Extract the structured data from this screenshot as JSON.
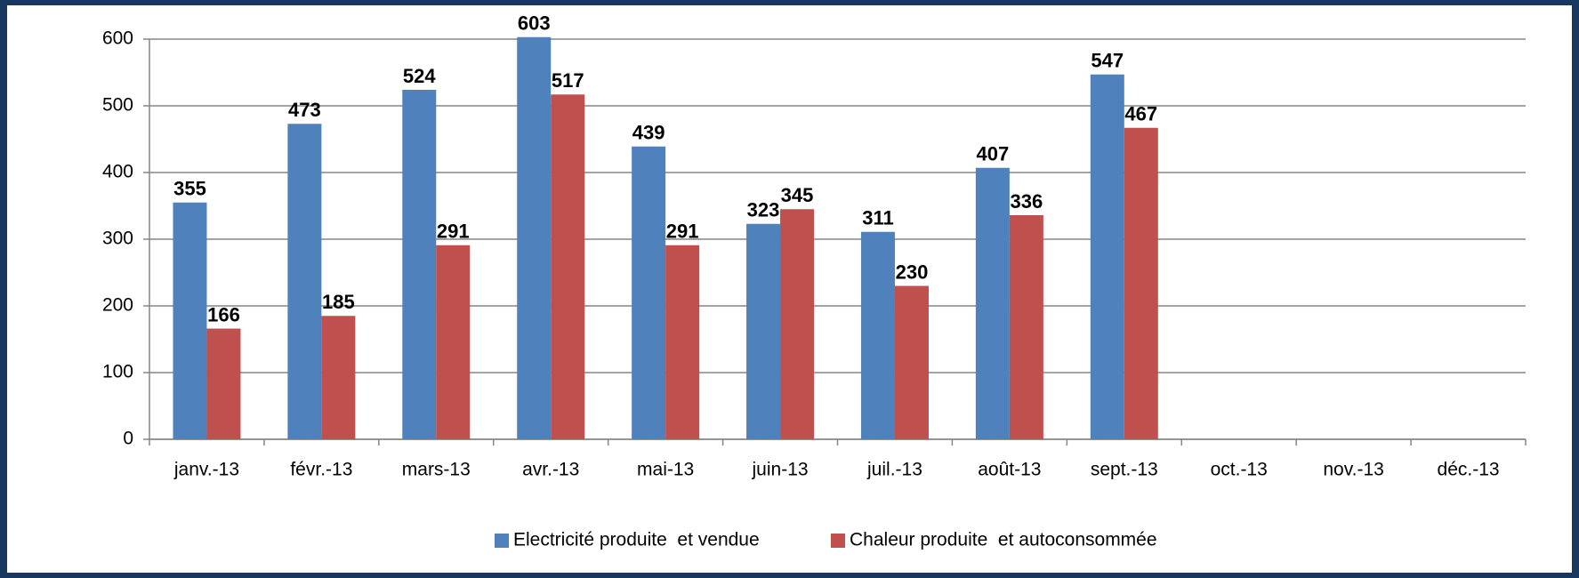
{
  "chart_data": {
    "type": "bar",
    "categories": [
      "janv.-13",
      "févr.-13",
      "mars-13",
      "avr.-13",
      "mai-13",
      "juin-13",
      "juil.-13",
      "août-13",
      "sept.-13",
      "oct.-13",
      "nov.-13",
      "déc.-13"
    ],
    "series": [
      {
        "name": "Electricité produite  et vendue",
        "color": "#4f81bd",
        "values": [
          355,
          473,
          524,
          603,
          439,
          323,
          311,
          407,
          547,
          null,
          null,
          null
        ]
      },
      {
        "name": "Chaleur produite  et autoconsommée",
        "color": "#c0504d",
        "values": [
          166,
          185,
          291,
          517,
          291,
          345,
          230,
          336,
          467,
          null,
          null,
          null
        ]
      }
    ],
    "ylim": [
      0,
      600
    ],
    "yticks": [
      0,
      100,
      200,
      300,
      400,
      500,
      600
    ],
    "grid": true,
    "legend": "bottom",
    "data_labels": true
  }
}
